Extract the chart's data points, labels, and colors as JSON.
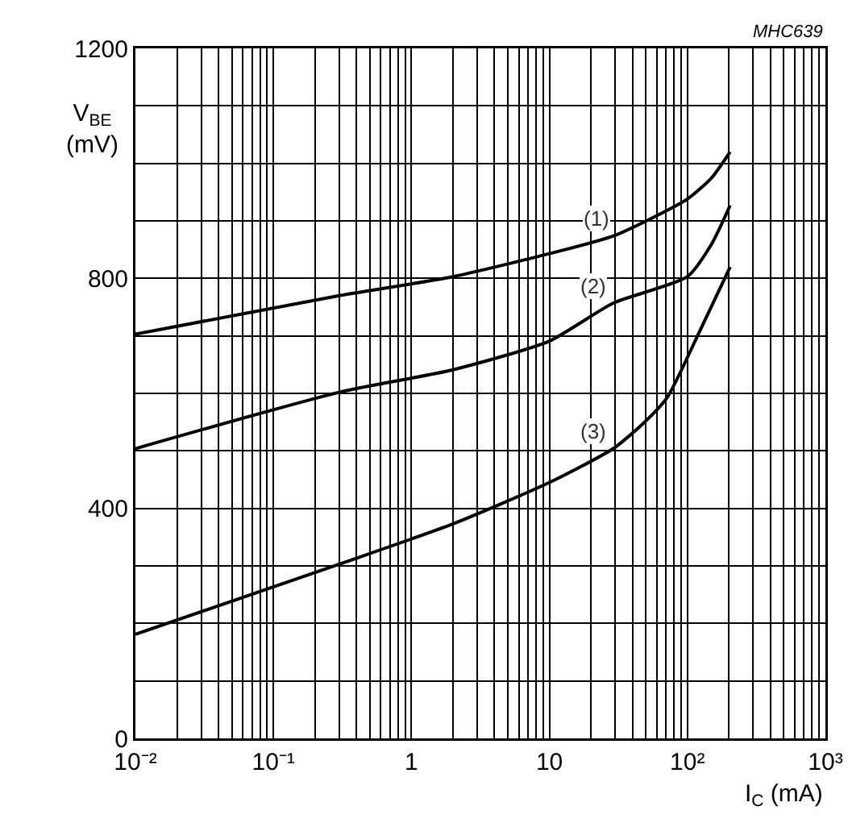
{
  "chart_data": {
    "type": "line",
    "xlabel": "I$_{C}$ (mA)",
    "ylabel": "V$_{BE}$\n(mV)",
    "log": "x",
    "grid": true,
    "marker": "none",
    "line_style": "solid",
    "xlim": [
      0.01,
      1000
    ],
    "ylim": [
      0,
      1200
    ],
    "xticks": [
      {
        "value": 0.01,
        "label": "10⁻²"
      },
      {
        "value": 0.02,
        "label": null
      },
      {
        "value": 0.03,
        "label": null
      },
      {
        "value": 0.04,
        "label": null
      },
      {
        "value": 0.05,
        "label": null
      },
      {
        "value": 0.06,
        "label": null
      },
      {
        "value": 0.07,
        "label": null
      },
      {
        "value": 0.08,
        "label": null
      },
      {
        "value": 0.09,
        "label": null
      },
      {
        "value": 0.1,
        "label": "10⁻¹"
      },
      {
        "value": 0.2,
        "label": null
      },
      {
        "value": 0.3,
        "label": null
      },
      {
        "value": 0.4,
        "label": null
      },
      {
        "value": 0.5,
        "label": null
      },
      {
        "value": 0.6,
        "label": null
      },
      {
        "value": 0.7,
        "label": null
      },
      {
        "value": 0.8,
        "label": null
      },
      {
        "value": 0.9,
        "label": null
      },
      1,
      {
        "value": 2,
        "label": null
      },
      {
        "value": 3,
        "label": null
      },
      {
        "value": 4,
        "label": null
      },
      {
        "value": 5,
        "label": null
      },
      {
        "value": 6,
        "label": null
      },
      {
        "value": 7,
        "label": null
      },
      {
        "value": 8,
        "label": null
      },
      {
        "value": 9,
        "label": null
      },
      10,
      {
        "value": 20,
        "label": null
      },
      {
        "value": 30,
        "label": null
      },
      {
        "value": 40,
        "label": null
      },
      {
        "value": 50,
        "label": null
      },
      {
        "value": 60,
        "label": null
      },
      {
        "value": 70,
        "label": null
      },
      {
        "value": 80,
        "label": null
      },
      {
        "value": 90,
        "label": null
      },
      {
        "value": 100,
        "label": "10²"
      },
      {
        "value": 200,
        "label": null
      },
      {
        "value": 300,
        "label": null
      },
      {
        "value": 400,
        "label": null
      },
      {
        "value": 500,
        "label": null
      },
      {
        "value": 600,
        "label": null
      },
      {
        "value": 700,
        "label": null
      },
      {
        "value": 800,
        "label": null
      },
      {
        "value": 900,
        "label": null
      },
      {
        "value": 1000,
        "label": "10³"
      }
    ],
    "yticks": [
      0,
      {
        "value": 100,
        "label": null
      },
      {
        "value": 200,
        "label": null
      },
      {
        "value": 300,
        "label": null
      },
      400,
      {
        "value": 500,
        "label": null
      },
      {
        "value": 600,
        "label": null
      },
      {
        "value": 700,
        "label": null
      },
      800,
      {
        "value": 900,
        "label": null
      },
      {
        "value": 1000,
        "label": null
      },
      {
        "value": 1100,
        "label": null
      },
      1200
    ],
    "series": [
      {
        "name": "(1)",
        "color": "#000000",
        "x": [
          0.01,
          0.3,
          2,
          10,
          30,
          100,
          150,
          204
        ],
        "values": [
          703,
          770,
          803,
          843,
          875,
          938,
          975,
          1020
        ]
      },
      {
        "name": "(2)",
        "color": "#000000",
        "x": [
          0.01,
          0.3,
          2,
          10,
          29,
          100,
          150,
          204
        ],
        "values": [
          504,
          602,
          641,
          691,
          757,
          803,
          860,
          927
        ]
      },
      {
        "name": "(3)",
        "color": "#000000",
        "x": [
          0.01,
          0.3,
          2,
          10,
          29,
          47,
          71,
          121,
          204
        ],
        "values": [
          181,
          303,
          373,
          445,
          504,
          546,
          592,
          705,
          820
        ]
      }
    ],
    "annotations": [
      "MHC639"
    ]
  }
}
